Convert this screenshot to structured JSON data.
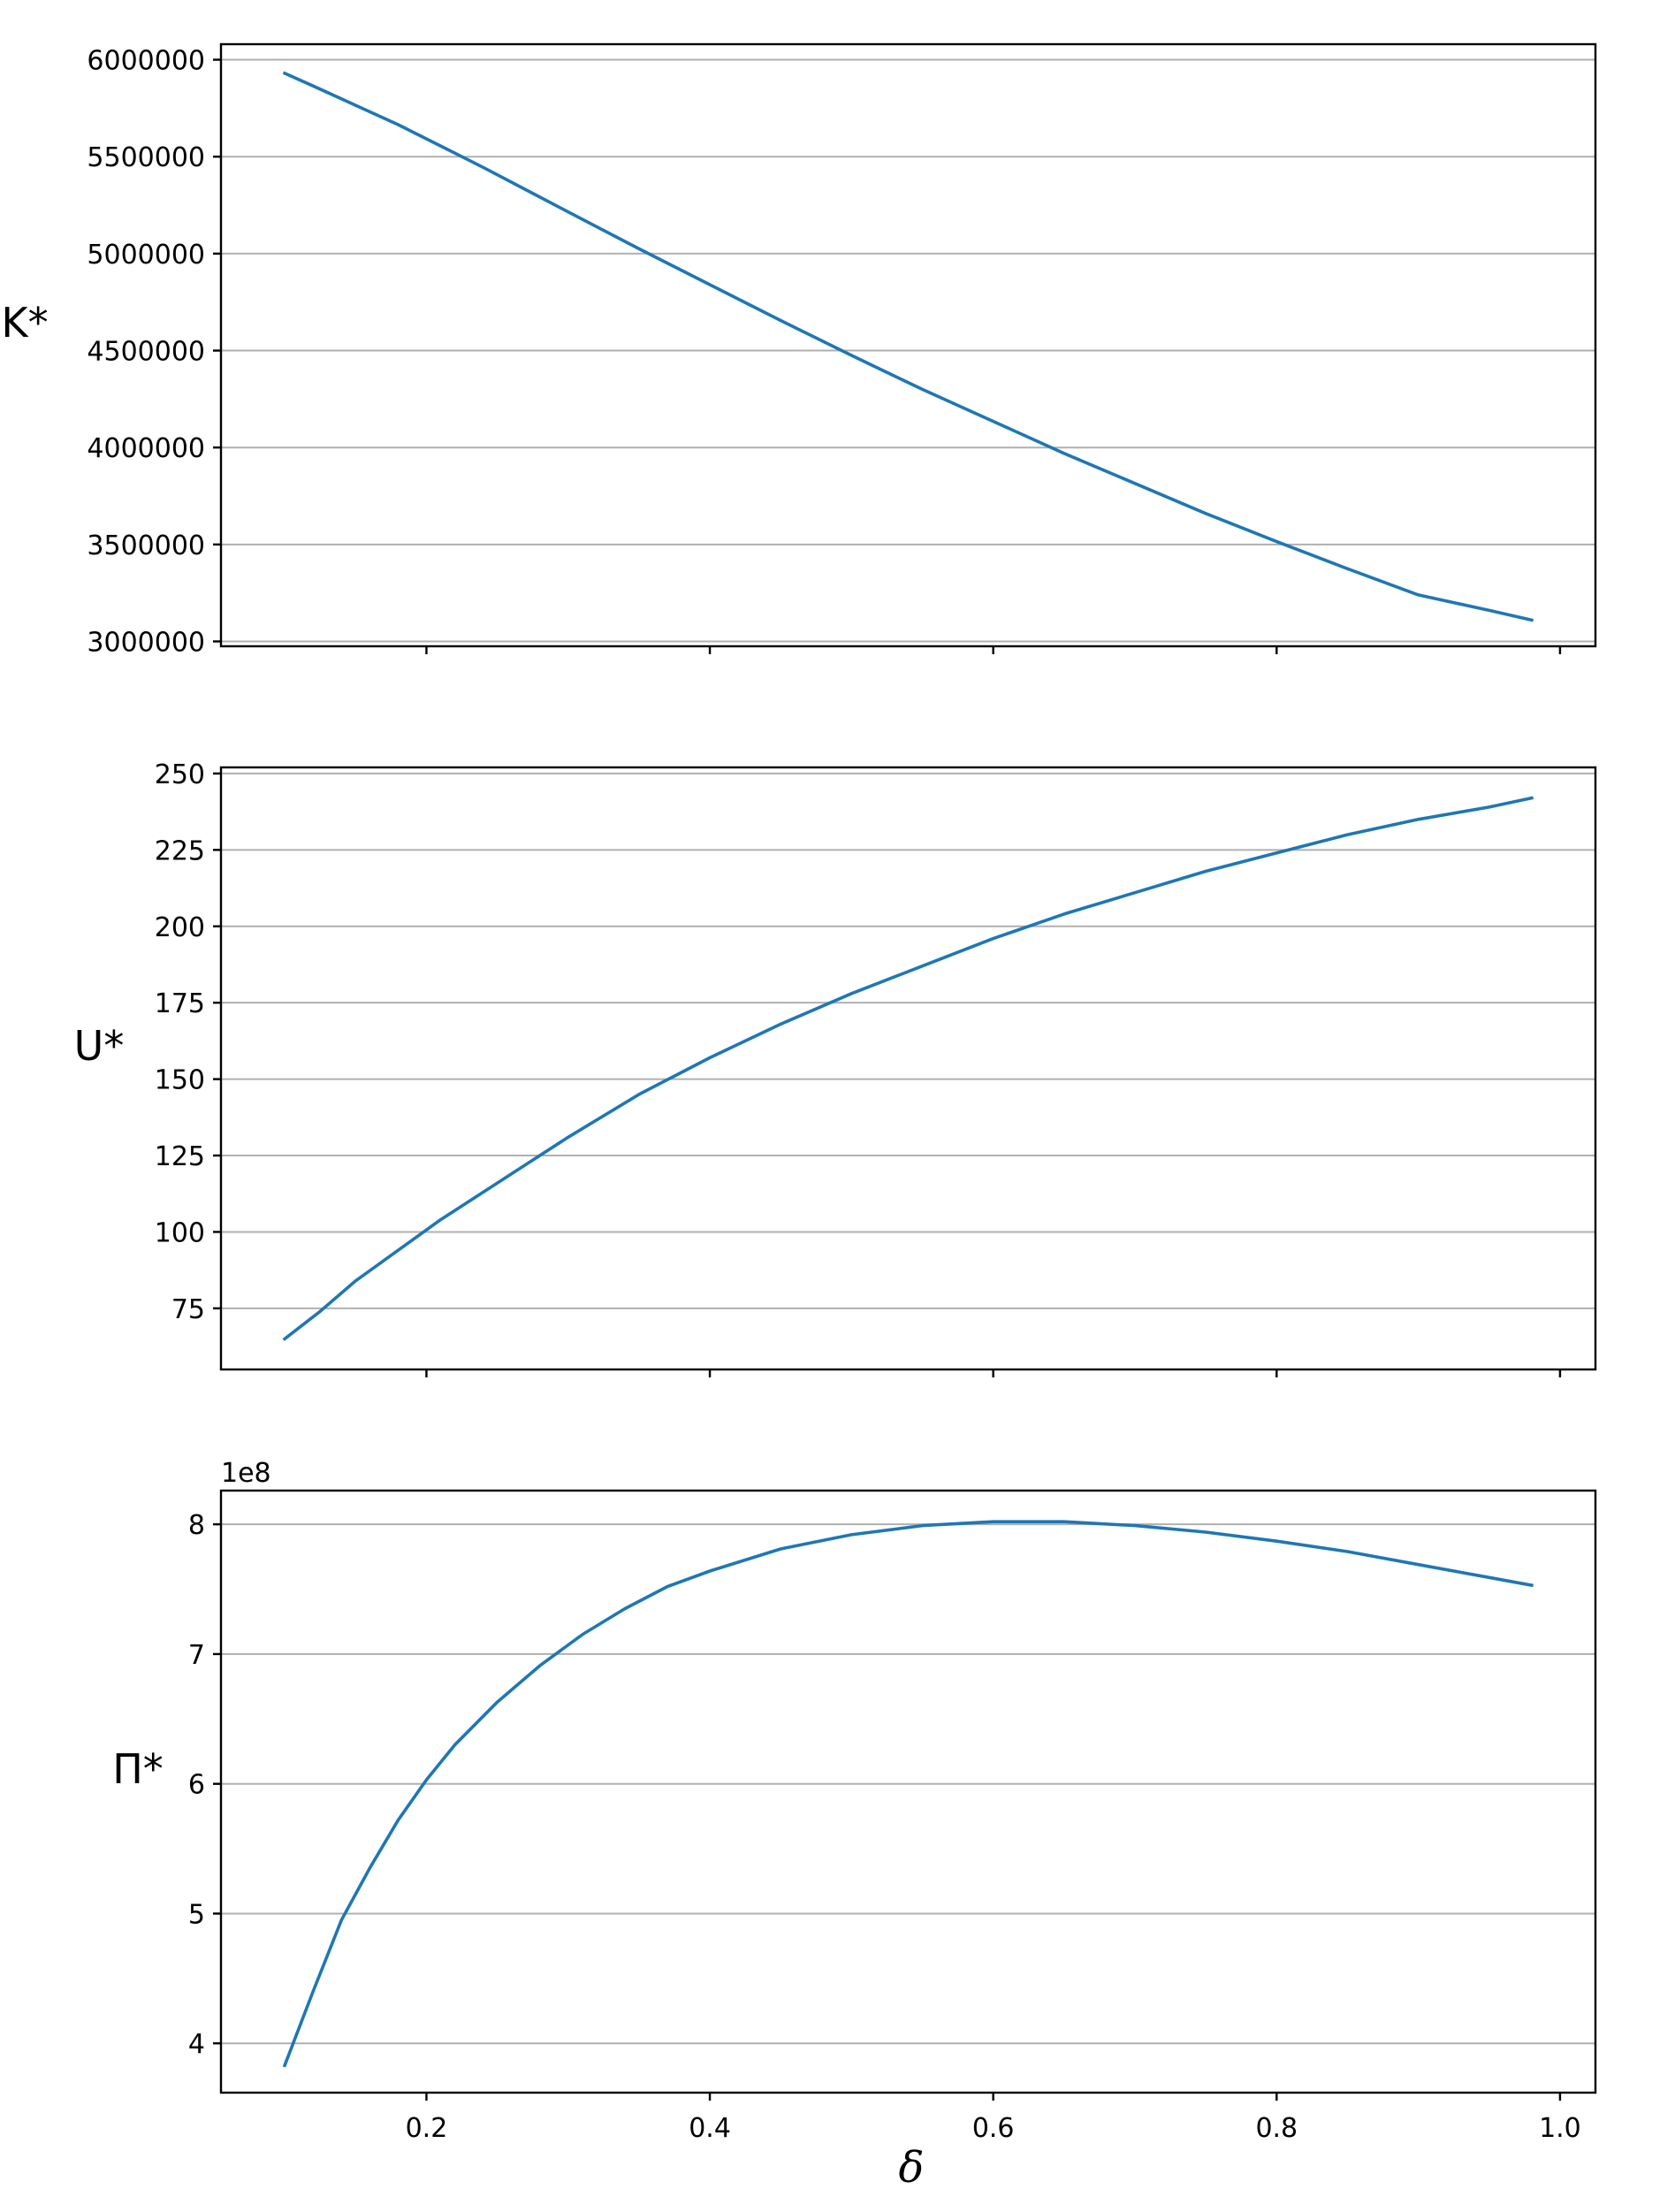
{
  "chart_data": {
    "type": "line",
    "colors": {
      "series": "#1f77b4"
    },
    "xlabel": "δ",
    "xlim": [
      0.055,
      1.025
    ],
    "xticks": [
      0.2,
      0.4,
      0.6,
      0.8,
      1.0
    ],
    "xtick_labels": [
      "0.2",
      "0.4",
      "0.6",
      "0.8",
      "1.0"
    ],
    "grid": "horizontal",
    "panels": [
      {
        "ylabel": "K*",
        "ylim": [
          2975000,
          6080000
        ],
        "yticks": [
          3000000,
          3500000,
          4000000,
          4500000,
          5000000,
          5500000,
          6000000
        ],
        "ytick_labels": [
          "3000000",
          "3500000",
          "4000000",
          "4500000",
          "5000000",
          "5500000",
          "6000000"
        ],
        "offset_text": "",
        "x": [
          0.1,
          0.12,
          0.15,
          0.18,
          0.21,
          0.24,
          0.27,
          0.3,
          0.35,
          0.4,
          0.45,
          0.5,
          0.55,
          0.6,
          0.65,
          0.7,
          0.75,
          0.8,
          0.85,
          0.9,
          0.95,
          0.98
        ],
        "y": [
          5930000,
          5865000,
          5765000,
          5665000,
          5555000,
          5445000,
          5330000,
          5215000,
          5025000,
          4840000,
          4655000,
          4475000,
          4300000,
          4135000,
          3970000,
          3815000,
          3660000,
          3515000,
          3375000,
          3240000,
          3160000,
          3110000
        ]
      },
      {
        "ylabel": "U*",
        "ylim": [
          55,
          252
        ],
        "yticks": [
          75,
          100,
          125,
          150,
          175,
          200,
          225,
          250
        ],
        "ytick_labels": [
          "75",
          "100",
          "125",
          "150",
          "175",
          "200",
          "225",
          "250"
        ],
        "offset_text": "",
        "x": [
          0.1,
          0.125,
          0.15,
          0.18,
          0.21,
          0.24,
          0.27,
          0.3,
          0.35,
          0.4,
          0.45,
          0.5,
          0.55,
          0.6,
          0.65,
          0.7,
          0.75,
          0.8,
          0.85,
          0.9,
          0.95,
          0.98
        ],
        "y": [
          65,
          74,
          84,
          94,
          104,
          113,
          122,
          131,
          145,
          157,
          168,
          178,
          187,
          196,
          204,
          211,
          218,
          224,
          230,
          235,
          239,
          242
        ]
      },
      {
        "ylabel": "Π*",
        "ylim": [
          3.62,
          8.26
        ],
        "yticks": [
          4,
          5,
          6,
          7,
          8
        ],
        "ytick_labels": [
          "4",
          "5",
          "6",
          "7",
          "8"
        ],
        "offset_text": "1e8",
        "x": [
          0.1,
          0.12,
          0.14,
          0.16,
          0.18,
          0.2,
          0.22,
          0.25,
          0.28,
          0.31,
          0.34,
          0.37,
          0.4,
          0.45,
          0.5,
          0.55,
          0.6,
          0.65,
          0.7,
          0.75,
          0.8,
          0.85,
          0.9,
          0.95,
          0.98
        ],
        "y": [
          3.83,
          4.4,
          4.95,
          5.35,
          5.72,
          6.03,
          6.3,
          6.63,
          6.91,
          7.15,
          7.35,
          7.52,
          7.64,
          7.81,
          7.92,
          7.99,
          8.02,
          8.02,
          7.99,
          7.94,
          7.87,
          7.79,
          7.69,
          7.59,
          7.53
        ]
      }
    ]
  }
}
